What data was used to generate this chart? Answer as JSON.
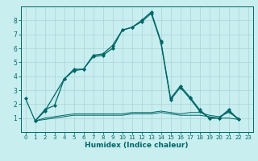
{
  "title": "",
  "xlabel": "Humidex (Indice chaleur)",
  "background_color": "#c8eef0",
  "grid_color": "#aad4d8",
  "line_color": "#006666",
  "xlim": [
    -0.5,
    23.5
  ],
  "ylim": [
    0,
    9
  ],
  "xticks": [
    0,
    1,
    2,
    3,
    4,
    5,
    6,
    7,
    8,
    9,
    10,
    11,
    12,
    13,
    14,
    15,
    16,
    17,
    18,
    19,
    20,
    21,
    22,
    23
  ],
  "yticks": [
    1,
    2,
    3,
    4,
    5,
    6,
    7,
    8
  ],
  "series": [
    {
      "x": [
        0,
        1,
        2,
        3,
        4,
        5,
        6,
        7,
        8,
        9,
        10,
        11,
        12,
        13,
        14,
        15,
        16,
        17,
        18,
        19,
        20,
        21,
        22
      ],
      "y": [
        2.4,
        0.8,
        1.6,
        1.9,
        3.8,
        4.5,
        4.5,
        5.5,
        5.6,
        6.2,
        7.3,
        7.5,
        8.0,
        8.6,
        6.5,
        2.4,
        3.3,
        2.5,
        1.6,
        1.0,
        1.0,
        1.6,
        0.9
      ]
    },
    {
      "x": [
        1,
        2,
        4,
        5,
        6,
        7,
        8,
        9,
        10,
        11,
        12,
        13,
        14,
        15,
        16,
        17,
        18,
        19,
        20,
        21,
        22
      ],
      "y": [
        0.8,
        1.5,
        3.8,
        4.4,
        4.5,
        5.4,
        5.5,
        6.0,
        7.3,
        7.5,
        7.9,
        8.5,
        6.4,
        2.3,
        3.2,
        2.4,
        1.5,
        1.0,
        1.0,
        1.5,
        0.9
      ]
    },
    {
      "x": [
        1,
        2,
        3,
        4,
        5,
        6,
        7,
        8,
        9,
        10,
        11,
        12,
        13,
        14,
        15,
        16,
        17,
        18,
        19,
        20,
        21,
        22
      ],
      "y": [
        0.8,
        1.0,
        1.1,
        1.2,
        1.3,
        1.3,
        1.3,
        1.3,
        1.3,
        1.3,
        1.4,
        1.4,
        1.4,
        1.5,
        1.4,
        1.3,
        1.4,
        1.4,
        1.2,
        1.1,
        1.4,
        1.0
      ]
    },
    {
      "x": [
        1,
        2,
        3,
        4,
        5,
        6,
        7,
        8,
        9,
        10,
        11,
        12,
        13,
        14,
        15,
        16,
        17,
        18,
        19,
        20,
        21,
        22
      ],
      "y": [
        0.8,
        0.9,
        1.0,
        1.1,
        1.2,
        1.2,
        1.2,
        1.2,
        1.2,
        1.2,
        1.3,
        1.3,
        1.3,
        1.4,
        1.3,
        1.2,
        1.2,
        1.2,
        1.1,
        1.0,
        1.0,
        0.9
      ]
    }
  ]
}
